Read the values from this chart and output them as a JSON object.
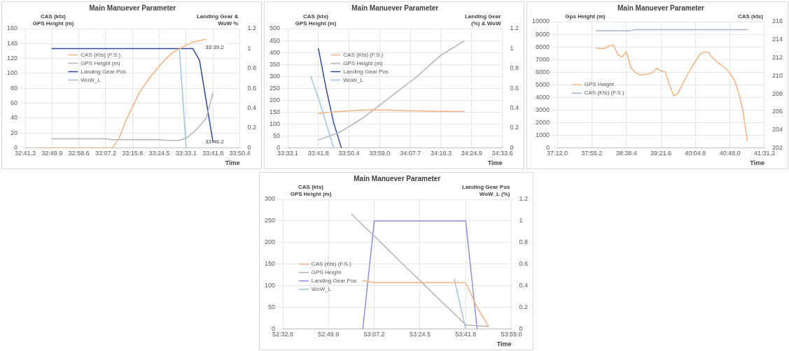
{
  "chart_data": [
    {
      "type": "line",
      "title": "Main Manuever Parameter",
      "xlabel": "Time",
      "ylabel": "CAS (kts)\nGPS Height (m)",
      "y2label": "Landing Gear &\nWoW %",
      "categories": [
        "32:41.3",
        null,
        null,
        null,
        "32:49.9",
        null,
        null,
        null,
        "32:58.6",
        null,
        null,
        null,
        "33:07.2",
        null,
        null,
        null,
        "33:15.8",
        null,
        null,
        null,
        "33:24.5",
        null,
        null,
        null,
        "33:33.1",
        null,
        null,
        null,
        "33:41.8",
        null,
        null,
        null,
        "33:50.4"
      ],
      "ylim": [
        0,
        160
      ],
      "yticks": [
        0,
        20,
        40,
        60,
        80,
        100,
        120,
        140,
        160
      ],
      "y2lim": [
        0,
        1.2
      ],
      "y2ticks": [
        0,
        0.2,
        0.4,
        0.6,
        0.8,
        1,
        1.2
      ],
      "grid": true,
      "legend": "top left",
      "marker": "none",
      "line_style": "solid",
      "annotations": [
        {
          "text": "33:39.2",
          "y": 135
        },
        {
          "text": "33:46.2",
          "y": 8
        }
      ],
      "series": [
        {
          "name": "CAS (Kts) (F.S.)",
          "color": "#f4b183",
          "values": [
            null,
            null,
            0,
            0,
            0,
            0,
            0,
            0,
            0,
            0,
            0,
            0,
            0,
            0,
            13,
            36,
            55,
            74,
            87,
            99,
            110,
            120,
            128,
            133,
            138,
            142,
            144,
            146,
            null,
            null,
            null,
            null,
            null
          ]
        },
        {
          "name": "GPS Height (m)",
          "color": "#b4b4b4",
          "values": [
            null,
            null,
            null,
            null,
            12,
            12,
            12,
            12,
            12,
            12,
            12,
            12,
            12,
            11,
            11,
            11,
            11,
            11,
            11,
            11,
            11,
            10,
            10,
            10,
            13,
            20,
            29,
            40,
            74,
            null,
            null,
            null,
            null
          ]
        },
        {
          "name": "Landing Gear Pos",
          "color": "#2e4a9a",
          "axis": "y2",
          "values": [
            null,
            null,
            null,
            null,
            1,
            1,
            1,
            1,
            1,
            1,
            1,
            1,
            1,
            1,
            1,
            1,
            1,
            1,
            1,
            1,
            1,
            1,
            1,
            1,
            1,
            1,
            0.88,
            0.47,
            0.06,
            null,
            null,
            null,
            null
          ]
        },
        {
          "name": "WoW_L",
          "color": "#9dc3e6",
          "axis": "y2",
          "values": [
            null,
            null,
            null,
            null,
            null,
            null,
            null,
            null,
            null,
            null,
            null,
            null,
            null,
            null,
            null,
            null,
            null,
            null,
            null,
            null,
            null,
            null,
            null,
            1,
            0,
            null,
            null,
            null,
            null,
            null,
            null,
            null,
            null
          ]
        }
      ]
    },
    {
      "type": "line",
      "title": "Main Manuever Parameter",
      "xlabel": "Time",
      "ylabel": "CAS (kts)\nGPS Height (m)",
      "y2label": "Landing Gear\n(%) & WoW",
      "categories": [
        "33:33.1",
        null,
        null,
        null,
        "33:41.8",
        null,
        null,
        null,
        "33:50.4",
        null,
        null,
        null,
        "33:59.0",
        null,
        null,
        null,
        "34:07.7",
        null,
        null,
        null,
        "34:16.3",
        null,
        null,
        null,
        "34:24.9",
        null,
        null,
        null,
        "34:33.6"
      ],
      "ylim": [
        0,
        500
      ],
      "yticks": [
        0,
        50,
        100,
        150,
        200,
        250,
        300,
        350,
        400,
        450,
        500
      ],
      "y2lim": [
        0,
        1.2
      ],
      "y2ticks": [
        0,
        0.2,
        0.4,
        0.6,
        0.8,
        1,
        1.2
      ],
      "grid": true,
      "legend": "top left",
      "marker": "none",
      "line_style": "solid",
      "series": [
        {
          "name": "CAS (Kts) (F.S.)",
          "color": "#f4b183",
          "values": [
            null,
            null,
            null,
            null,
            144,
            148,
            151,
            153,
            155,
            157,
            158,
            159,
            158,
            158,
            157,
            156,
            155,
            155,
            154,
            154,
            153,
            153,
            152,
            152,
            null,
            null,
            null,
            null,
            null
          ]
        },
        {
          "name": "GPS Height (m)",
          "color": "#b4b4b4",
          "values": [
            null,
            null,
            null,
            null,
            33,
            44,
            56,
            70,
            89,
            109,
            130,
            154,
            179,
            203,
            229,
            253,
            277,
            303,
            332,
            361,
            389,
            409,
            428,
            448,
            null,
            null,
            null,
            null,
            null
          ]
        },
        {
          "name": "Landing Gear Pos",
          "color": "#2e4a9a",
          "axis": "y2",
          "values": [
            null,
            null,
            null,
            null,
            1,
            0.6,
            0.25,
            0,
            null,
            null,
            null,
            null,
            null,
            null,
            null,
            null,
            null,
            null,
            null,
            null,
            null,
            null,
            null,
            null,
            null,
            null,
            null,
            null,
            null
          ]
        },
        {
          "name": "WoW_L",
          "color": "#9dc3e6",
          "axis": "y2",
          "values": [
            null,
            null,
            null,
            0.72,
            0.5,
            0.25,
            0,
            null,
            null,
            null,
            null,
            null,
            null,
            null,
            null,
            null,
            null,
            null,
            null,
            null,
            null,
            null,
            null,
            null,
            null,
            null,
            null,
            null,
            null
          ]
        }
      ]
    },
    {
      "type": "line",
      "title": "Main Manuever Parameter",
      "xlabel": "Time",
      "ylabel": "Gps Height (m)",
      "y2label": "CAS (kts)",
      "categories": [
        "37:12.0",
        null,
        null,
        null,
        null,
        null,
        null,
        null,
        "37:55.2",
        null,
        null,
        null,
        null,
        null,
        null,
        null,
        "38:38.4",
        null,
        null,
        null,
        null,
        null,
        null,
        null,
        "39:21.6",
        null,
        null,
        null,
        null,
        null,
        null,
        null,
        "40:04.8",
        null,
        null,
        null,
        null,
        null,
        null,
        null,
        "40:48.0",
        null,
        null,
        null,
        null,
        null,
        null,
        null,
        "41:31.2"
      ],
      "ylim": [
        0,
        10000
      ],
      "yticks": [
        0,
        1000,
        2000,
        3000,
        4000,
        5000,
        6000,
        7000,
        8000,
        9000,
        10000
      ],
      "y2lim": [
        202,
        216
      ],
      "y2ticks": [
        202,
        204,
        206,
        208,
        210,
        212,
        214,
        216
      ],
      "grid": true,
      "legend": "left",
      "marker": "none",
      "line_style": "solid",
      "series": [
        {
          "name": "GPS Height",
          "color": "#f4b183",
          "values": [
            null,
            null,
            null,
            null,
            null,
            null,
            null,
            null,
            null,
            7900,
            7880,
            7860,
            8100,
            8150,
            7400,
            7200,
            7600,
            6400,
            6000,
            5800,
            5800,
            5850,
            5950,
            6300,
            6100,
            6030,
            5000,
            4100,
            4350,
            5030,
            5710,
            6320,
            6850,
            7390,
            7600,
            7560,
            7130,
            6820,
            6540,
            6300,
            5900,
            5400,
            4400,
            2950,
            550,
            null,
            null,
            null,
            null
          ]
        },
        {
          "name": "CAS (Kts) (F.S.)",
          "color": "#a6b4d0",
          "axis": "y2",
          "values": [
            null,
            null,
            null,
            null,
            null,
            null,
            null,
            null,
            null,
            215,
            215,
            215,
            215,
            215,
            215,
            215,
            215,
            215,
            215.1,
            215.1,
            215.1,
            215.1,
            215.1,
            215.1,
            215.1,
            215.1,
            215.1,
            215.1,
            215.1,
            215.1,
            215.1,
            215.1,
            215.1,
            215.1,
            215.1,
            215.1,
            215.1,
            215.1,
            215.1,
            215.1,
            215.1,
            215.1,
            215.1,
            215.1,
            215.1,
            null,
            null,
            null,
            null
          ]
        }
      ]
    },
    {
      "type": "line",
      "title": "Main Manuever Parameter",
      "xlabel": "Time",
      "ylabel": "CAS (kts)\nGPS Height (m)",
      "y2label": "Landing Gear Pos\nWoW_L (%)",
      "categories": [
        "52:32.6",
        null,
        null,
        null,
        "52:49.9",
        null,
        null,
        null,
        "53:07.2",
        null,
        null,
        null,
        "53:24.5",
        null,
        null,
        null,
        "53:41.8",
        null,
        null,
        null,
        "53:59.0"
      ],
      "ylim": [
        0,
        300
      ],
      "yticks": [
        0,
        50,
        100,
        150,
        200,
        250,
        300
      ],
      "y2lim": [
        0,
        1.2
      ],
      "y2ticks": [
        0,
        0.2,
        0.4,
        0.6,
        0.8,
        1,
        1.2
      ],
      "grid": true,
      "legend": "left",
      "marker": "none",
      "line_style": "solid",
      "series": [
        {
          "name": "CAS (Kts) (F.S.)",
          "color": "#f4b183",
          "values": [
            null,
            null,
            null,
            null,
            null,
            null,
            null,
            112,
            107,
            107,
            107,
            107,
            107,
            107,
            107,
            107,
            107,
            50,
            6,
            null,
            null
          ]
        },
        {
          "name": "GPS Height",
          "color": "#b4b4b4",
          "values": [
            null,
            null,
            null,
            null,
            null,
            null,
            266,
            240,
            215,
            189,
            163,
            137,
            112,
            86,
            60,
            35,
            9,
            7,
            6,
            null,
            null
          ]
        },
        {
          "name": "Landing Gear Pos",
          "color": "#8f8fe0",
          "axis": "y2",
          "values": [
            null,
            null,
            null,
            null,
            null,
            null,
            null,
            0,
            1,
            1,
            1,
            1,
            1,
            1,
            1,
            1,
            1,
            0,
            null,
            null,
            null
          ]
        },
        {
          "name": "WoW_L",
          "color": "#9dc3e6",
          "axis": "y2",
          "values": [
            null,
            null,
            null,
            null,
            null,
            null,
            null,
            null,
            null,
            null,
            null,
            null,
            null,
            null,
            null,
            0.46,
            0,
            null,
            null,
            null,
            null
          ]
        }
      ]
    }
  ]
}
